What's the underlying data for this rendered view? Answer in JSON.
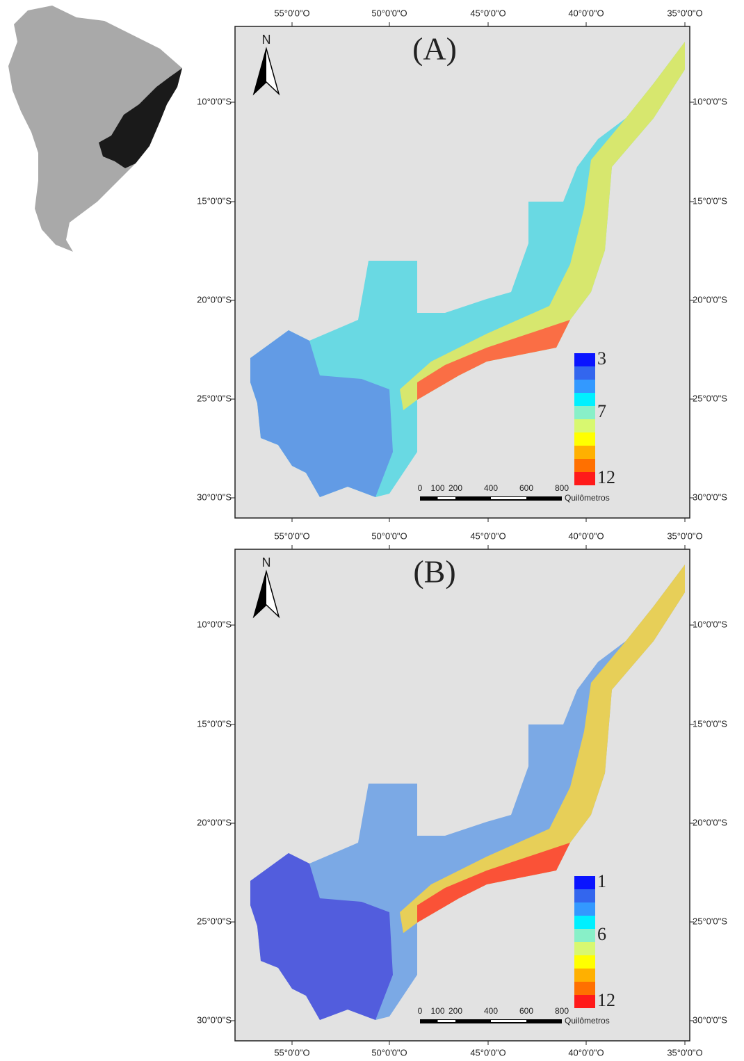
{
  "axes": {
    "longitude_labels": [
      "55°0'0\"O",
      "50°0'0\"O",
      "45°0'0\"O",
      "40°0'0\"O",
      "35°0'0\"O"
    ],
    "latitude_labels": [
      "10°0'0\"S",
      "15°0'0\"S",
      "20°0'0\"S",
      "25°0'0\"S",
      "30°0'0\"S"
    ]
  },
  "north_label": "N",
  "scale_bar": {
    "ticks": [
      0,
      100,
      200,
      400,
      600,
      800
    ],
    "unit": "Quilômetros"
  },
  "panels": [
    {
      "label": "(A)",
      "legend_labels": [
        3,
        7,
        12
      ]
    },
    {
      "label": "(B)",
      "legend_labels": [
        1,
        6,
        12
      ]
    }
  ]
}
